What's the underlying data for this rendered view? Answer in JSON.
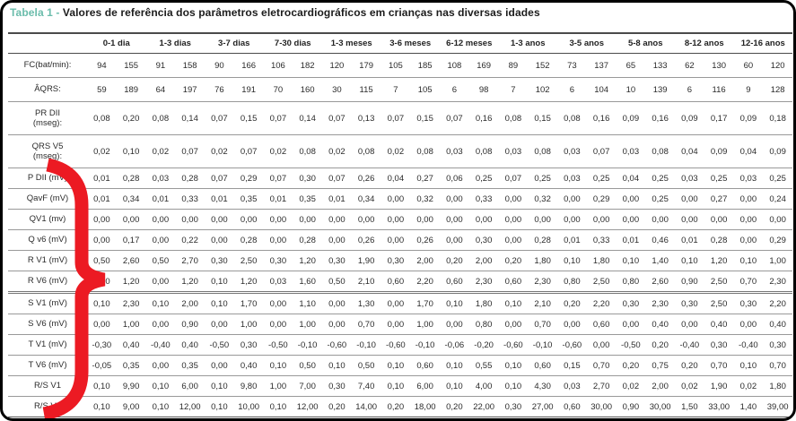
{
  "title": {
    "prefix": "Tabela 1 - ",
    "text": "Valores de referência dos parâmetros eletrocardiográficos em crianças nas diversas idades"
  },
  "colors": {
    "title_prefix": "#6abcab",
    "brace": "#ec1a23",
    "text": "#2b2b2b"
  },
  "annotation": {
    "shape": "right-curly-brace",
    "color": "#ec1a23"
  },
  "table": {
    "age_groups": [
      "0-1 dia",
      "1-3 dias",
      "3-7 dias",
      "7-30 dias",
      "1-3 meses",
      "3-6 meses",
      "6-12 meses",
      "1-3 anos",
      "3-5 anos",
      "5-8 anos",
      "8-12 anos",
      "12-16 anos"
    ],
    "rows": [
      {
        "label": "FC(bat/min):",
        "mid": true,
        "values": [
          "94",
          "155",
          "91",
          "158",
          "90",
          "166",
          "106",
          "182",
          "120",
          "179",
          "105",
          "185",
          "108",
          "169",
          "89",
          "152",
          "73",
          "137",
          "65",
          "133",
          "62",
          "130",
          "60",
          "120"
        ]
      },
      {
        "label": "ÂQRS:",
        "mid": true,
        "values": [
          "59",
          "189",
          "64",
          "197",
          "76",
          "191",
          "70",
          "160",
          "30",
          "115",
          "7",
          "105",
          "6",
          "98",
          "7",
          "102",
          "6",
          "104",
          "10",
          "139",
          "6",
          "116",
          "9",
          "128"
        ]
      },
      {
        "label": "PR DII\n(mseg):",
        "tall": true,
        "values": [
          "0,08",
          "0,20",
          "0,08",
          "0,14",
          "0,07",
          "0,15",
          "0,07",
          "0,14",
          "0,07",
          "0,13",
          "0,07",
          "0,15",
          "0,07",
          "0,16",
          "0,08",
          "0,15",
          "0,08",
          "0,16",
          "0,09",
          "0,16",
          "0,09",
          "0,17",
          "0,09",
          "0,18"
        ]
      },
      {
        "label": "QRS V5\n(mseg):",
        "tall": true,
        "values": [
          "0,02",
          "0,10",
          "0,02",
          "0,07",
          "0,02",
          "0,07",
          "0,02",
          "0,08",
          "0,02",
          "0,08",
          "0,02",
          "0,08",
          "0,03",
          "0,08",
          "0,03",
          "0,08",
          "0,03",
          "0,07",
          "0,03",
          "0,08",
          "0,04",
          "0,09",
          "0,04",
          "0,09"
        ]
      },
      {
        "label": "P DII (mV)",
        "values": [
          "0,01",
          "0,28",
          "0,03",
          "0,28",
          "0,07",
          "0,29",
          "0,07",
          "0,30",
          "0,07",
          "0,26",
          "0,04",
          "0,27",
          "0,06",
          "0,25",
          "0,07",
          "0,25",
          "0,03",
          "0,25",
          "0,04",
          "0,25",
          "0,03",
          "0,25",
          "0,03",
          "0,25"
        ]
      },
      {
        "label": "QavF (mV)",
        "values": [
          "0,01",
          "0,34",
          "0,01",
          "0,33",
          "0,01",
          "0,35",
          "0,01",
          "0,35",
          "0,01",
          "0,34",
          "0,00",
          "0,32",
          "0,00",
          "0,33",
          "0,00",
          "0,32",
          "0,00",
          "0,29",
          "0,00",
          "0,25",
          "0,00",
          "0,27",
          "0,00",
          "0,24"
        ]
      },
      {
        "label": "QV1 (mv)",
        "values": [
          "0,00",
          "0,00",
          "0,00",
          "0,00",
          "0,00",
          "0,00",
          "0,00",
          "0,00",
          "0,00",
          "0,00",
          "0,00",
          "0,00",
          "0,00",
          "0,00",
          "0,00",
          "0,00",
          "0,00",
          "0,00",
          "0,00",
          "0,00",
          "0,00",
          "0,00",
          "0,00",
          "0,00"
        ]
      },
      {
        "label": "Q v6 (mV)",
        "values": [
          "0,00",
          "0,17",
          "0,00",
          "0,22",
          "0,00",
          "0,28",
          "0,00",
          "0,28",
          "0,00",
          "0,26",
          "0,00",
          "0,26",
          "0,00",
          "0,30",
          "0,00",
          "0,28",
          "0,01",
          "0,33",
          "0,01",
          "0,46",
          "0,01",
          "0,28",
          "0,00",
          "0,29"
        ]
      },
      {
        "label": "R V1 (mV)",
        "values": [
          "0,50",
          "2,60",
          "0,50",
          "2,70",
          "0,30",
          "2,50",
          "0,30",
          "1,20",
          "0,30",
          "1,90",
          "0,30",
          "2,00",
          "0,20",
          "2,00",
          "0,20",
          "1,80",
          "0,10",
          "1,80",
          "0,10",
          "1,40",
          "0,10",
          "1,20",
          "0,10",
          "1,00"
        ]
      },
      {
        "label": "R V6 (mV)",
        "sep": true,
        "values": [
          "0,00",
          "1,20",
          "0,00",
          "1,20",
          "0,10",
          "1,20",
          "0,03",
          "1,60",
          "0,50",
          "2,10",
          "0,60",
          "2,20",
          "0,60",
          "2,30",
          "0,60",
          "2,30",
          "0,80",
          "2,50",
          "0,80",
          "2,60",
          "0,90",
          "2,50",
          "0,70",
          "2,30"
        ]
      },
      {
        "label": "S V1 (mV)",
        "values": [
          "0,10",
          "2,30",
          "0,10",
          "2,00",
          "0,10",
          "1,70",
          "0,00",
          "1,10",
          "0,00",
          "1,30",
          "0,00",
          "1,70",
          "0,10",
          "1,80",
          "0,10",
          "2,10",
          "0,20",
          "2,20",
          "0,30",
          "2,30",
          "0,30",
          "2,50",
          "0,30",
          "2,20"
        ]
      },
      {
        "label": "S V6 (mV)",
        "values": [
          "0,00",
          "1,00",
          "0,00",
          "0,90",
          "0,00",
          "1,00",
          "0,00",
          "1,00",
          "0,00",
          "0,70",
          "0,00",
          "1,00",
          "0,00",
          "0,80",
          "0,00",
          "0,70",
          "0,00",
          "0,60",
          "0,00",
          "0,40",
          "0,00",
          "0,40",
          "0,00",
          "0,40"
        ]
      },
      {
        "label": "T V1 (mV)",
        "values": [
          "-0,30",
          "0,40",
          "-0,40",
          "0,40",
          "-0,50",
          "0,30",
          "-0,50",
          "-0,10",
          "-0,60",
          "-0,10",
          "-0,60",
          "-0,10",
          "-0,06",
          "-0,20",
          "-0,60",
          "-0,10",
          "-0,60",
          "0,00",
          "-0,50",
          "0,20",
          "-0,40",
          "0,30",
          "-0,40",
          "0,30"
        ]
      },
      {
        "label": "T V6 (mV)",
        "values": [
          "-0,05",
          "0,35",
          "0,00",
          "0,35",
          "0,00",
          "0,40",
          "0,10",
          "0,50",
          "0,10",
          "0,50",
          "0,10",
          "0,60",
          "0,10",
          "0,55",
          "0,10",
          "0,60",
          "0,15",
          "0,70",
          "0,20",
          "0,75",
          "0,20",
          "0,70",
          "0,10",
          "0,70"
        ]
      },
      {
        "label": "R/S V1",
        "values": [
          "0,10",
          "9,90",
          "0,10",
          "6,00",
          "0,10",
          "9,80",
          "1,00",
          "7,00",
          "0,30",
          "7,40",
          "0,10",
          "6,00",
          "0,10",
          "4,00",
          "0,10",
          "4,30",
          "0,03",
          "2,70",
          "0,02",
          "2,00",
          "0,02",
          "1,90",
          "0,02",
          "1,80"
        ]
      },
      {
        "label": "R/S V6",
        "values": [
          "0,10",
          "9,00",
          "0,10",
          "12,00",
          "0,10",
          "10,00",
          "0,10",
          "12,00",
          "0,20",
          "14,00",
          "0,20",
          "18,00",
          "0,20",
          "22,00",
          "0,30",
          "27,00",
          "0,60",
          "30,00",
          "0,90",
          "30,00",
          "1,50",
          "33,00",
          "1,40",
          "39,00"
        ]
      }
    ]
  }
}
